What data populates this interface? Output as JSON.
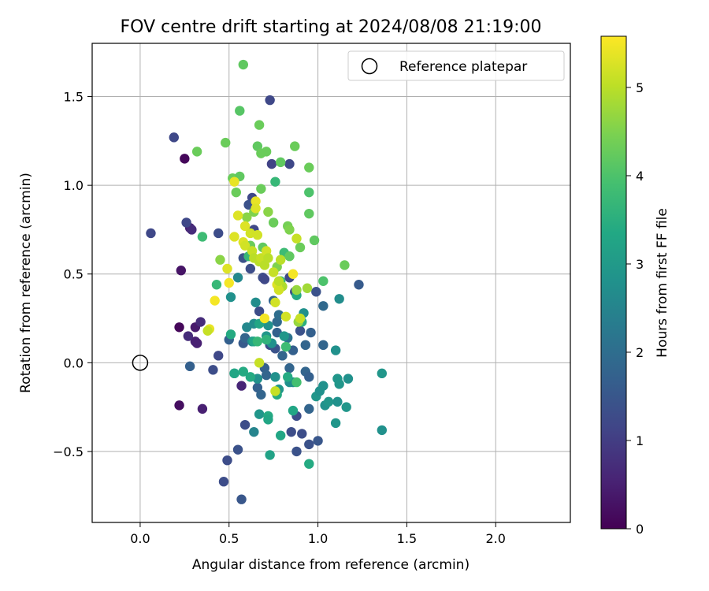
{
  "chart_data": {
    "type": "scatter",
    "title": "FOV centre drift starting at 2024/08/08 21:19:00",
    "xlabel": "Angular distance from reference (arcmin)",
    "ylabel": "Rotation from reference (arcmin)",
    "xlim": [
      -0.27,
      2.42
    ],
    "ylim": [
      -0.9,
      1.8
    ],
    "xticks": [
      0.0,
      0.5,
      1.0,
      1.5,
      2.0
    ],
    "xtick_labels": [
      "0.0",
      "0.5",
      "1.0",
      "1.5",
      "2.0"
    ],
    "yticks": [
      -0.5,
      0.0,
      0.5,
      1.0,
      1.5
    ],
    "ytick_labels": [
      "−0.5",
      "0.0",
      "0.5",
      "1.0",
      "1.5"
    ],
    "grid": true,
    "legend": {
      "position": "upper right",
      "entries": [
        "Reference platepar"
      ]
    },
    "reference_point": {
      "x": 0.0,
      "y": 0.0
    },
    "colorbar": {
      "label": "Hours from first FF file",
      "colormap": "viridis",
      "range": [
        0,
        5.58
      ],
      "ticks": [
        0,
        1,
        2,
        3,
        4,
        5
      ],
      "tick_labels": [
        "0",
        "1",
        "2",
        "3",
        "4",
        "5"
      ]
    },
    "points": [
      [
        0.25,
        1.15,
        0.1
      ],
      [
        0.22,
        0.2,
        0.1
      ],
      [
        0.22,
        -0.24,
        0.2
      ],
      [
        0.23,
        0.52,
        0.3
      ],
      [
        0.28,
        0.76,
        0.5
      ],
      [
        0.31,
        0.2,
        0.4
      ],
      [
        0.31,
        0.12,
        0.5
      ],
      [
        0.32,
        0.11,
        0.5
      ],
      [
        0.35,
        -0.26,
        0.5
      ],
      [
        0.27,
        0.15,
        0.7
      ],
      [
        0.57,
        -0.13,
        0.6
      ],
      [
        0.29,
        0.75,
        0.7
      ],
      [
        0.34,
        0.23,
        0.7
      ],
      [
        0.19,
        1.27,
        1.2
      ],
      [
        0.06,
        0.73,
        1.2
      ],
      [
        0.26,
        0.79,
        1.2
      ],
      [
        0.44,
        0.73,
        1.3
      ],
      [
        0.73,
        1.48,
        1.2
      ],
      [
        0.41,
        -0.04,
        1.3
      ],
      [
        0.44,
        0.04,
        1.2
      ],
      [
        0.49,
        -0.55,
        1.3
      ],
      [
        0.47,
        -0.67,
        1.3
      ],
      [
        0.55,
        -0.49,
        1.4
      ],
      [
        0.57,
        -0.77,
        1.5
      ],
      [
        0.59,
        -0.35,
        1.3
      ],
      [
        0.63,
        0.93,
        1.2
      ],
      [
        0.61,
        0.89,
        1.4
      ],
      [
        0.64,
        0.75,
        1.2
      ],
      [
        0.58,
        0.59,
        1.4
      ],
      [
        0.62,
        0.53,
        1.3
      ],
      [
        0.74,
        1.12,
        1.1
      ],
      [
        0.84,
        1.12,
        1.2
      ],
      [
        0.67,
        0.29,
        1.3
      ],
      [
        0.69,
        0.48,
        1.3
      ],
      [
        0.7,
        0.47,
        1.2
      ],
      [
        0.73,
        0.1,
        1.3
      ],
      [
        0.76,
        0.08,
        1.4
      ],
      [
        0.84,
        0.48,
        1.2
      ],
      [
        0.87,
        0.4,
        1.3
      ],
      [
        0.9,
        0.18,
        1.4
      ],
      [
        0.88,
        -0.3,
        1.3
      ],
      [
        0.85,
        -0.39,
        1.3
      ],
      [
        0.88,
        -0.5,
        1.4
      ],
      [
        0.91,
        -0.4,
        1.3
      ],
      [
        0.95,
        -0.46,
        1.4
      ],
      [
        1.0,
        -0.44,
        1.5
      ],
      [
        0.99,
        0.4,
        1.4
      ],
      [
        1.23,
        0.44,
        1.6
      ],
      [
        0.28,
        -0.02,
        1.7
      ],
      [
        0.5,
        0.13,
        1.7
      ],
      [
        0.58,
        0.11,
        1.6
      ],
      [
        0.59,
        0.14,
        1.8
      ],
      [
        0.66,
        -0.14,
        1.7
      ],
      [
        0.68,
        -0.18,
        1.8
      ],
      [
        0.7,
        -0.03,
        1.7
      ],
      [
        0.71,
        -0.07,
        1.8
      ],
      [
        0.77,
        0.17,
        1.7
      ],
      [
        0.8,
        0.04,
        1.8
      ],
      [
        0.84,
        -0.03,
        1.8
      ],
      [
        0.86,
        0.07,
        1.7
      ],
      [
        0.93,
        -0.05,
        1.8
      ],
      [
        0.95,
        -0.08,
        1.7
      ],
      [
        0.95,
        -0.26,
        1.8
      ],
      [
        0.93,
        0.1,
        1.8
      ],
      [
        0.96,
        0.17,
        1.7
      ],
      [
        1.03,
        0.1,
        1.8
      ],
      [
        1.03,
        0.32,
        1.9
      ],
      [
        0.75,
        0.35,
        1.8
      ],
      [
        0.77,
        0.23,
        1.9
      ],
      [
        0.78,
        0.27,
        2.0
      ],
      [
        0.83,
        0.14,
        2.1
      ],
      [
        0.64,
        -0.39,
        2.5
      ],
      [
        0.55,
        0.48,
        2.6
      ],
      [
        0.51,
        0.37,
        2.8
      ],
      [
        0.53,
        -0.06,
        2.9
      ],
      [
        0.6,
        0.2,
        2.6
      ],
      [
        0.64,
        0.22,
        2.7
      ],
      [
        0.63,
        0.12,
        2.8
      ],
      [
        0.65,
        0.34,
        2.7
      ],
      [
        0.66,
        -0.09,
        2.8
      ],
      [
        0.67,
        -0.29,
        2.9
      ],
      [
        0.72,
        0.21,
        2.8
      ],
      [
        0.71,
        0.15,
        2.9
      ],
      [
        0.74,
        0.11,
        2.8
      ],
      [
        0.76,
        -0.08,
        2.8
      ],
      [
        0.78,
        -0.15,
        2.9
      ],
      [
        0.81,
        0.15,
        2.9
      ],
      [
        0.84,
        -0.11,
        2.8
      ],
      [
        0.86,
        -0.11,
        2.7
      ],
      [
        0.92,
        0.28,
        2.8
      ],
      [
        0.99,
        -0.19,
        2.9
      ],
      [
        1.01,
        -0.16,
        2.8
      ],
      [
        1.03,
        -0.13,
        2.8
      ],
      [
        1.04,
        -0.24,
        2.8
      ],
      [
        1.06,
        -0.22,
        2.9
      ],
      [
        1.1,
        -0.34,
        2.9
      ],
      [
        1.1,
        0.07,
        2.8
      ],
      [
        1.11,
        -0.09,
        2.9
      ],
      [
        1.11,
        -0.22,
        2.8
      ],
      [
        1.12,
        -0.12,
        2.9
      ],
      [
        1.12,
        0.36,
        2.7
      ],
      [
        1.16,
        -0.25,
        2.9
      ],
      [
        1.17,
        -0.09,
        2.8
      ],
      [
        1.36,
        -0.06,
        2.9
      ],
      [
        1.36,
        -0.38,
        2.8
      ],
      [
        0.51,
        0.16,
        3.4
      ],
      [
        0.53,
        -0.06,
        3.3
      ],
      [
        0.58,
        -0.05,
        3.4
      ],
      [
        0.62,
        -0.08,
        3.4
      ],
      [
        0.64,
        0.12,
        3.3
      ],
      [
        0.67,
        0.22,
        3.3
      ],
      [
        0.72,
        -0.3,
        3.4
      ],
      [
        0.72,
        -0.32,
        3.3
      ],
      [
        0.73,
        -0.52,
        3.2
      ],
      [
        0.77,
        -0.18,
        3.4
      ],
      [
        0.79,
        -0.41,
        3.3
      ],
      [
        0.83,
        -0.08,
        3.4
      ],
      [
        0.86,
        -0.27,
        3.3
      ],
      [
        0.88,
        0.38,
        3.4
      ],
      [
        0.91,
        0.23,
        3.5
      ],
      [
        0.95,
        -0.57,
        3.4
      ],
      [
        0.71,
        0.13,
        3.6
      ],
      [
        0.43,
        0.44,
        3.7
      ],
      [
        0.35,
        0.71,
        3.8
      ],
      [
        0.61,
        0.6,
        3.7
      ],
      [
        0.66,
        0.12,
        3.7
      ],
      [
        0.76,
        1.02,
        3.7
      ],
      [
        0.79,
        0.46,
        3.7
      ],
      [
        0.81,
        0.62,
        3.8
      ],
      [
        0.82,
        0.09,
        3.8
      ],
      [
        0.88,
        -0.11,
        3.9
      ],
      [
        0.95,
        0.96,
        4.0
      ],
      [
        1.03,
        0.46,
        4.0
      ],
      [
        0.58,
        1.68,
        4.2
      ],
      [
        0.56,
        1.42,
        4.1
      ],
      [
        0.67,
        1.34,
        4.3
      ],
      [
        0.48,
        1.24,
        4.3
      ],
      [
        0.32,
        1.19,
        4.3
      ],
      [
        0.66,
        1.22,
        4.2
      ],
      [
        0.71,
        1.19,
        4.3
      ],
      [
        0.79,
        1.13,
        4.2
      ],
      [
        0.87,
        1.22,
        4.3
      ],
      [
        0.95,
        1.1,
        4.3
      ],
      [
        0.52,
        1.04,
        4.3
      ],
      [
        0.56,
        1.05,
        4.2
      ],
      [
        0.54,
        0.96,
        4.3
      ],
      [
        0.68,
        0.98,
        4.3
      ],
      [
        0.68,
        1.18,
        4.3
      ],
      [
        0.62,
        0.66,
        4.3
      ],
      [
        0.69,
        0.65,
        4.2
      ],
      [
        0.75,
        0.79,
        4.3
      ],
      [
        0.83,
        0.77,
        4.4
      ],
      [
        0.84,
        0.6,
        4.2
      ],
      [
        0.9,
        0.65,
        4.3
      ],
      [
        0.95,
        0.84,
        4.2
      ],
      [
        0.98,
        0.69,
        4.2
      ],
      [
        1.15,
        0.55,
        4.3
      ],
      [
        0.45,
        0.58,
        4.6
      ],
      [
        0.6,
        0.82,
        4.6
      ],
      [
        0.64,
        0.85,
        4.5
      ],
      [
        0.72,
        0.85,
        4.6
      ],
      [
        0.77,
        0.54,
        4.5
      ],
      [
        0.84,
        0.75,
        4.5
      ],
      [
        0.88,
        0.41,
        4.7
      ],
      [
        0.89,
        0.23,
        4.7
      ],
      [
        0.94,
        0.42,
        4.8
      ],
      [
        0.8,
        0.43,
        4.9
      ],
      [
        0.53,
        1.02,
        5.4
      ],
      [
        0.55,
        0.83,
        5.3
      ],
      [
        0.59,
        0.77,
        5.3
      ],
      [
        0.62,
        0.73,
        5.2
      ],
      [
        0.65,
        0.91,
        5.4
      ],
      [
        0.65,
        0.87,
        5.3
      ],
      [
        0.58,
        0.68,
        5.3
      ],
      [
        0.59,
        0.66,
        5.2
      ],
      [
        0.63,
        0.63,
        5.1
      ],
      [
        0.64,
        0.59,
        5.0
      ],
      [
        0.66,
        0.72,
        5.2
      ],
      [
        0.67,
        0.57,
        5.0
      ],
      [
        0.68,
        0.59,
        5.1
      ],
      [
        0.7,
        0.55,
        5.0
      ],
      [
        0.71,
        0.63,
        5.2
      ],
      [
        0.72,
        0.59,
        5.0
      ],
      [
        0.75,
        0.51,
        5.1
      ],
      [
        0.77,
        0.44,
        5.3
      ],
      [
        0.78,
        0.41,
        5.2
      ],
      [
        0.78,
        0.46,
        5.0
      ],
      [
        0.79,
        0.58,
        5.0
      ],
      [
        0.82,
        0.26,
        5.2
      ],
      [
        0.86,
        0.5,
        5.5
      ],
      [
        0.88,
        0.7,
        5.1
      ],
      [
        0.9,
        0.25,
        5.1
      ],
      [
        0.53,
        0.71,
        5.3
      ],
      [
        0.5,
        0.45,
        5.5
      ],
      [
        0.42,
        0.35,
        5.5
      ],
      [
        0.39,
        0.19,
        5.4
      ],
      [
        0.38,
        0.18,
        5.1
      ],
      [
        0.49,
        0.53,
        5.3
      ],
      [
        0.7,
        0.25,
        5.5
      ],
      [
        0.67,
        0.0,
        5.1
      ],
      [
        0.76,
        -0.16,
        5.1
      ],
      [
        0.76,
        0.34,
        5.2
      ]
    ]
  }
}
